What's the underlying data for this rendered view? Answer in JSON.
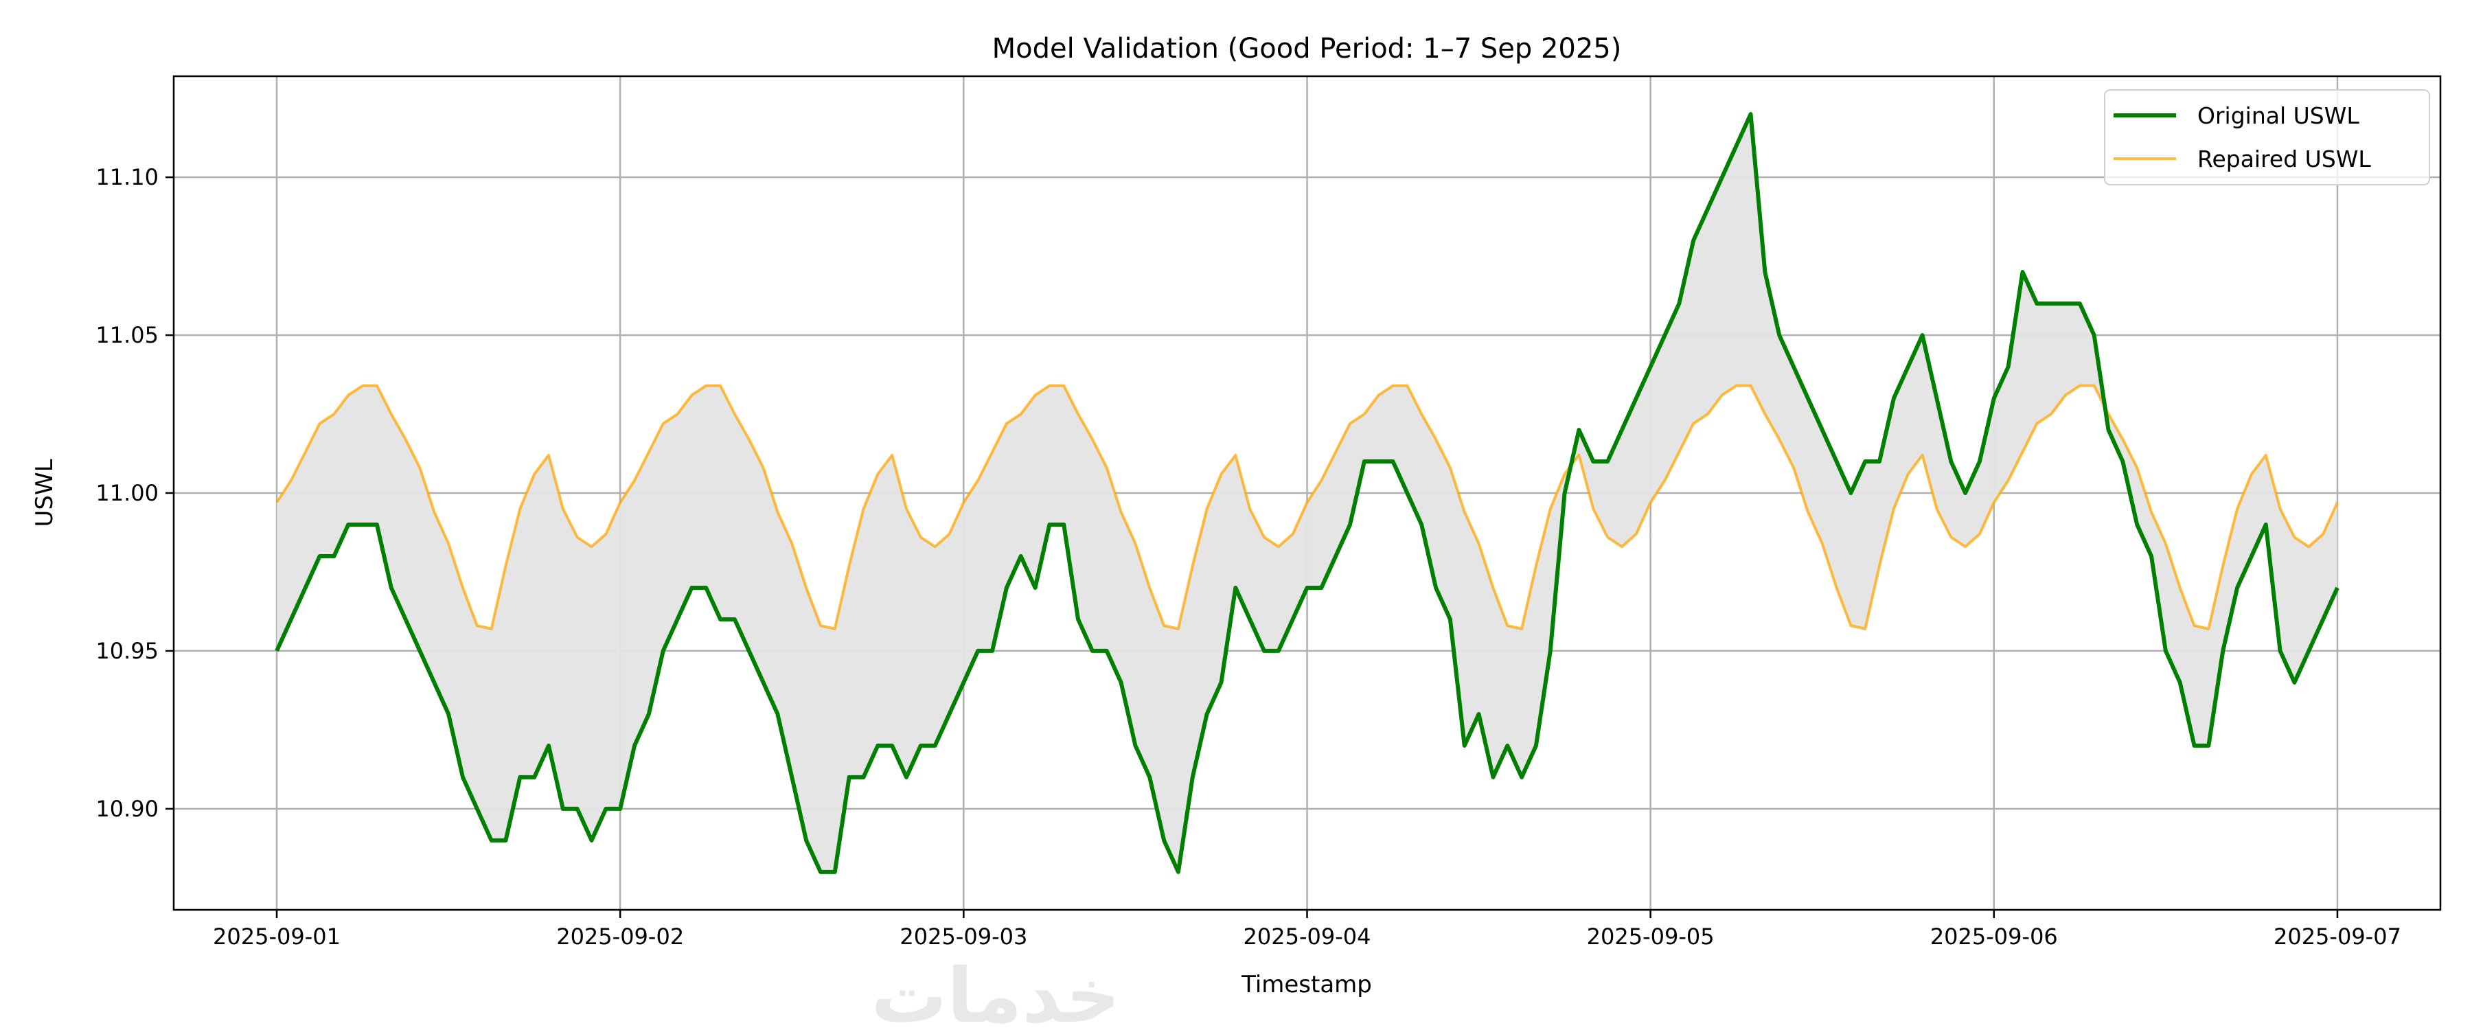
{
  "chart_data": {
    "type": "line",
    "title": "Model Validation (Good Period: 1–7 Sep 2025)",
    "xlabel": "Timestamp",
    "ylabel": "USWL",
    "xlim": [
      "2025-08-31T16:48",
      "2025-09-07T07:12"
    ],
    "ylim": [
      10.868,
      11.132
    ],
    "grid": true,
    "legend_position": "upper-right",
    "fill_between": {
      "series": [
        "Original USWL",
        "Repaired USWL"
      ],
      "color": "#e4e4e4"
    },
    "x_ticks": [
      "2025-09-01",
      "2025-09-02",
      "2025-09-03",
      "2025-09-04",
      "2025-09-05",
      "2025-09-06",
      "2025-09-07"
    ],
    "y_ticks": [
      "10.90",
      "10.95",
      "11.00",
      "11.05",
      "11.10"
    ],
    "x_start": "2025-09-01T00:00",
    "x_step": "1 hour",
    "series": [
      {
        "name": "Original USWL",
        "color": "#008000",
        "values": [
          10.95,
          10.96,
          10.97,
          10.98,
          10.98,
          10.99,
          10.99,
          10.99,
          10.97,
          10.96,
          10.95,
          10.94,
          10.93,
          10.91,
          10.9,
          10.89,
          10.89,
          10.91,
          10.91,
          10.92,
          10.9,
          10.9,
          10.89,
          10.9,
          10.9,
          10.92,
          10.93,
          10.95,
          10.96,
          10.97,
          10.97,
          10.96,
          10.96,
          10.95,
          10.94,
          10.93,
          10.91,
          10.89,
          10.88,
          10.88,
          10.91,
          10.91,
          10.92,
          10.92,
          10.91,
          10.92,
          10.92,
          10.93,
          10.94,
          10.95,
          10.95,
          10.97,
          10.98,
          10.97,
          10.99,
          10.99,
          10.96,
          10.95,
          10.95,
          10.94,
          10.92,
          10.91,
          10.89,
          10.88,
          10.91,
          10.93,
          10.94,
          10.97,
          10.96,
          10.95,
          10.95,
          10.96,
          10.97,
          10.97,
          10.98,
          10.99,
          11.01,
          11.01,
          11.01,
          11.0,
          10.99,
          10.97,
          10.96,
          10.92,
          10.93,
          10.91,
          10.92,
          10.91,
          10.92,
          10.95,
          11.0,
          11.02,
          11.01,
          11.01,
          11.02,
          11.03,
          11.04,
          11.05,
          11.06,
          11.08,
          11.09,
          11.1,
          11.11,
          11.12,
          11.07,
          11.05,
          11.04,
          11.03,
          11.02,
          11.01,
          11.0,
          11.01,
          11.01,
          11.03,
          11.04,
          11.05,
          11.03,
          11.01,
          11.0,
          11.01,
          11.03,
          11.04,
          11.07,
          11.06,
          11.06,
          11.06,
          11.06,
          11.05,
          11.02,
          11.01,
          10.99,
          10.98,
          10.95,
          10.94,
          10.92,
          10.92,
          10.95,
          10.97,
          10.98,
          10.99,
          10.95,
          10.94,
          10.95,
          10.96,
          10.97
        ]
      },
      {
        "name": "Repaired USWL",
        "color": "#ffa500",
        "values": [
          10.997,
          11.004,
          11.013,
          11.022,
          11.025,
          11.031,
          11.034,
          11.034,
          11.025,
          11.017,
          11.008,
          10.994,
          10.984,
          10.97,
          10.958,
          10.957,
          10.977,
          10.995,
          11.006,
          11.012,
          10.995,
          10.986,
          10.983,
          10.987,
          10.997,
          11.004,
          11.013,
          11.022,
          11.025,
          11.031,
          11.034,
          11.034,
          11.025,
          11.017,
          11.008,
          10.994,
          10.984,
          10.97,
          10.958,
          10.957,
          10.977,
          10.995,
          11.006,
          11.012,
          10.995,
          10.986,
          10.983,
          10.987,
          10.997,
          11.004,
          11.013,
          11.022,
          11.025,
          11.031,
          11.034,
          11.034,
          11.025,
          11.017,
          11.008,
          10.994,
          10.984,
          10.97,
          10.958,
          10.957,
          10.977,
          10.995,
          11.006,
          11.012,
          10.995,
          10.986,
          10.983,
          10.987,
          10.997,
          11.004,
          11.013,
          11.022,
          11.025,
          11.031,
          11.034,
          11.034,
          11.025,
          11.017,
          11.008,
          10.994,
          10.984,
          10.97,
          10.958,
          10.957,
          10.977,
          10.995,
          11.006,
          11.012,
          10.995,
          10.986,
          10.983,
          10.987,
          10.997,
          11.004,
          11.013,
          11.022,
          11.025,
          11.031,
          11.034,
          11.034,
          11.025,
          11.017,
          11.008,
          10.994,
          10.984,
          10.97,
          10.958,
          10.957,
          10.977,
          10.995,
          11.006,
          11.012,
          10.995,
          10.986,
          10.983,
          10.987,
          10.997,
          11.004,
          11.013,
          11.022,
          11.025,
          11.031,
          11.034,
          11.034,
          11.025,
          11.017,
          11.008,
          10.994,
          10.984,
          10.97,
          10.958,
          10.957,
          10.977,
          10.995,
          11.006,
          11.012,
          10.995,
          10.986,
          10.983,
          10.987,
          10.997
        ]
      }
    ]
  },
  "watermark": "خدمات"
}
